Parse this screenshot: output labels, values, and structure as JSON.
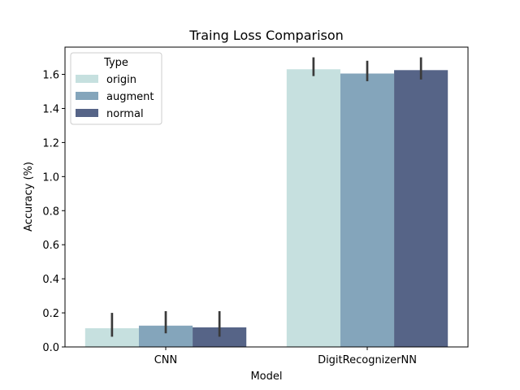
{
  "chart_data": {
    "type": "bar",
    "title": "Traing Loss Comparison",
    "xlabel": "Model",
    "ylabel": "Accuracy (%)",
    "categories": [
      "CNN",
      "DigitRecognizerNN"
    ],
    "ylim": [
      0,
      1.76
    ],
    "yticks": [
      0.0,
      0.2,
      0.4,
      0.6,
      0.8,
      1.0,
      1.2,
      1.4,
      1.6
    ],
    "ytick_labels": [
      "0.0",
      "0.2",
      "0.4",
      "0.6",
      "0.8",
      "1.0",
      "1.2",
      "1.4",
      "1.6"
    ],
    "grid": false,
    "legend": {
      "title": "Type",
      "placement": "top-left"
    },
    "series": [
      {
        "name": "origin",
        "color": "#c6e0df",
        "values": [
          0.11,
          1.63
        ],
        "err_low": [
          0.06,
          1.59
        ],
        "err_high": [
          0.2,
          1.7
        ]
      },
      {
        "name": "augment",
        "color": "#84a5bb",
        "values": [
          0.125,
          1.605
        ],
        "err_low": [
          0.08,
          1.56
        ],
        "err_high": [
          0.21,
          1.68
        ]
      },
      {
        "name": "normal",
        "color": "#566487",
        "values": [
          0.115,
          1.625
        ],
        "err_low": [
          0.06,
          1.57
        ],
        "err_high": [
          0.21,
          1.7
        ]
      }
    ],
    "error_bar_color": "#3a3a3a"
  }
}
